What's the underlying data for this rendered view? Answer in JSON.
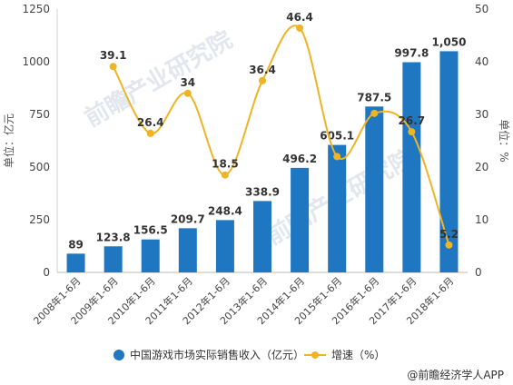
{
  "chart_data": {
    "type": "bar+line",
    "title": "",
    "categories": [
      "2008年1-6月",
      "2009年1-6月",
      "2010年1-6月",
      "2011年1-6月",
      "2012年1-6月",
      "2013年1-6月",
      "2014年1-6月",
      "2015年1-6月",
      "2016年1-6月",
      "2017年1-6月",
      "2018年1-6月"
    ],
    "series": [
      {
        "name": "中国游戏市场实际销售收入（亿元）",
        "type": "bar",
        "axis": "left",
        "color": "#1f77c2",
        "values": [
          89,
          123.8,
          156.5,
          209.7,
          248.4,
          338.9,
          496.2,
          605.1,
          787.5,
          997.8,
          1050
        ],
        "labels": [
          "89",
          "123.8",
          "156.5",
          "209.7",
          "248.4",
          "338.9",
          "496.2",
          "605.1",
          "787.5",
          "997.8",
          "1,050"
        ]
      },
      {
        "name": "增速（%）",
        "type": "line",
        "axis": "right",
        "color": "#f0b323",
        "values": [
          null,
          39.1,
          26.4,
          34,
          18.5,
          36.4,
          46.4,
          22,
          30.2,
          26.7,
          5.2
        ],
        "labels": [
          "",
          "39.1",
          "26.4",
          "34",
          "18.5",
          "36.4",
          "46.4",
          "",
          "",
          "26.7",
          "5.2"
        ]
      }
    ],
    "ylabel": "单位：亿元",
    "ylim": [
      0,
      1250
    ],
    "yticks": [
      "0",
      "250",
      "500",
      "750",
      "1000",
      "1250"
    ],
    "y2label": "单位：%",
    "y2lim": [
      0,
      50
    ],
    "y2ticks": [
      "0",
      "10",
      "20",
      "30",
      "40",
      "50"
    ],
    "grid": false,
    "legend_position": "bottom"
  },
  "watermark": "前瞻产业研究院",
  "source": "@前瞻经济学人APP"
}
